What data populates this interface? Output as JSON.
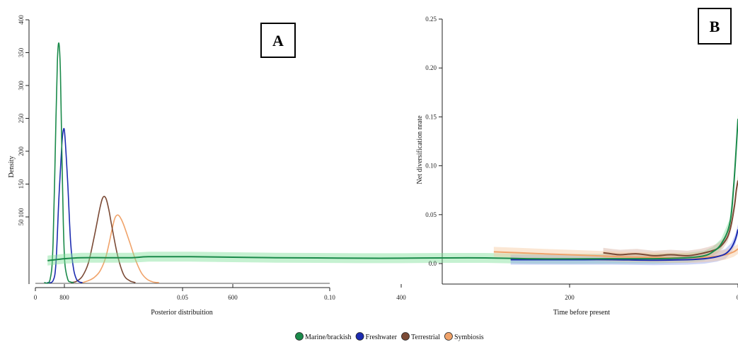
{
  "legend": [
    {
      "label": "Marine/brackish",
      "color": "#1a8a4a"
    },
    {
      "label": "Freshwater",
      "color": "#1c2bb0"
    },
    {
      "label": "Terrestrial",
      "color": "#7b4a35"
    },
    {
      "label": "Symbiosis",
      "color": "#f0a36a"
    }
  ],
  "chart_data": [
    {
      "panel": "A",
      "type": "line",
      "xlabel": "Posterior distribuition",
      "ylabel": "Density",
      "xlim": [
        0,
        0.1
      ],
      "ylim": [
        0,
        400
      ],
      "x_ticks": [
        "0",
        "0.05",
        "0.10"
      ],
      "x_tick_values": [
        0,
        0.05,
        0.1
      ],
      "y_ticks": [
        "50 100",
        "150",
        "200",
        "250",
        "300",
        "350",
        "400"
      ],
      "y_tick_values": [
        100,
        150,
        200,
        250,
        300,
        350,
        400
      ],
      "grid": false,
      "series": [
        {
          "name": "Marine/brackish",
          "color": "#1a8a4a",
          "x": [
            0.003,
            0.005,
            0.006,
            0.007,
            0.0075,
            0.008,
            0.0085,
            0.009,
            0.0095,
            0.01,
            0.011,
            0.012,
            0.013
          ],
          "y": [
            0,
            5,
            60,
            250,
            340,
            364,
            320,
            200,
            90,
            30,
            5,
            1,
            0
          ]
        },
        {
          "name": "Freshwater",
          "color": "#1c2bb0",
          "x": [
            0.004,
            0.006,
            0.007,
            0.008,
            0.009,
            0.0095,
            0.01,
            0.011,
            0.012,
            0.013,
            0.014,
            0.015,
            0.016
          ],
          "y": [
            0,
            3,
            30,
            130,
            210,
            232,
            225,
            150,
            60,
            20,
            5,
            1,
            0
          ]
        },
        {
          "name": "Terrestrial",
          "color": "#7b4a35",
          "x": [
            0.012,
            0.014,
            0.016,
            0.018,
            0.02,
            0.022,
            0.023,
            0.024,
            0.025,
            0.026,
            0.028,
            0.03,
            0.032,
            0.034
          ],
          "y": [
            0,
            2,
            10,
            30,
            70,
            115,
            130,
            128,
            110,
            85,
            40,
            12,
            3,
            0
          ]
        },
        {
          "name": "Symbiosis",
          "color": "#f0a36a",
          "x": [
            0.016,
            0.018,
            0.02,
            0.022,
            0.024,
            0.026,
            0.027,
            0.028,
            0.029,
            0.03,
            0.032,
            0.034,
            0.036,
            0.038,
            0.04,
            0.042
          ],
          "y": [
            0,
            3,
            8,
            18,
            40,
            80,
            98,
            103,
            98,
            88,
            62,
            35,
            15,
            5,
            1,
            0
          ]
        }
      ]
    },
    {
      "panel": "B",
      "type": "line",
      "xlabel": "Time before present",
      "ylabel": "Net diversification nrate",
      "xlim": [
        900,
        0
      ],
      "ylim": [
        -0.02,
        0.25
      ],
      "x_ticks": [
        "800",
        "600",
        "400",
        "200",
        "0"
      ],
      "x_tick_values": [
        800,
        600,
        400,
        200,
        0
      ],
      "y_ticks": [
        "0.0",
        "0.05",
        "0.10",
        "0.15",
        "0.20",
        "0.25"
      ],
      "y_tick_values": [
        0,
        0.05,
        0.1,
        0.15,
        0.2,
        0.25
      ],
      "grid": false,
      "series": [
        {
          "name": "Marine/brackish",
          "color": "#1a8a4a",
          "band": "#7fe09a",
          "x": [
            820,
            800,
            780,
            750,
            720,
            700,
            650,
            600,
            550,
            500,
            450,
            400,
            350,
            300,
            250,
            200,
            150,
            100,
            60,
            40,
            30,
            20,
            10,
            5,
            0
          ],
          "y": [
            0.003,
            0.005,
            0.006,
            0.006,
            0.006,
            0.007,
            0.007,
            0.0065,
            0.006,
            0.0058,
            0.0055,
            0.0055,
            0.0058,
            0.0058,
            0.005,
            0.0048,
            0.005,
            0.005,
            0.006,
            0.008,
            0.012,
            0.02,
            0.04,
            0.08,
            0.148
          ]
        },
        {
          "name": "Freshwater",
          "color": "#1c2bb0",
          "band": "#8fa0f0",
          "x": [
            270,
            250,
            200,
            150,
            100,
            60,
            40,
            25,
            15,
            8,
            3,
            0
          ],
          "y": [
            0.004,
            0.004,
            0.004,
            0.004,
            0.0035,
            0.004,
            0.005,
            0.007,
            0.01,
            0.016,
            0.025,
            0.035
          ]
        },
        {
          "name": "Terrestrial",
          "color": "#7b4a35",
          "band": "#d8b0a0",
          "x": [
            160,
            150,
            140,
            120,
            100,
            80,
            60,
            45,
            35,
            25,
            18,
            12,
            8,
            4,
            2,
            0
          ],
          "y": [
            0.011,
            0.01,
            0.009,
            0.01,
            0.008,
            0.009,
            0.008,
            0.01,
            0.012,
            0.015,
            0.02,
            0.028,
            0.04,
            0.06,
            0.075,
            0.085
          ]
        },
        {
          "name": "Symbiosis",
          "color": "#f0a36a",
          "band": "#f7c9a0",
          "x": [
            290,
            260,
            230,
            200,
            170,
            140,
            110,
            80,
            50,
            30,
            15,
            5,
            0
          ],
          "y": [
            0.012,
            0.011,
            0.01,
            0.009,
            0.008,
            0.007,
            0.0065,
            0.006,
            0.006,
            0.007,
            0.009,
            0.012,
            0.015
          ]
        }
      ]
    }
  ]
}
